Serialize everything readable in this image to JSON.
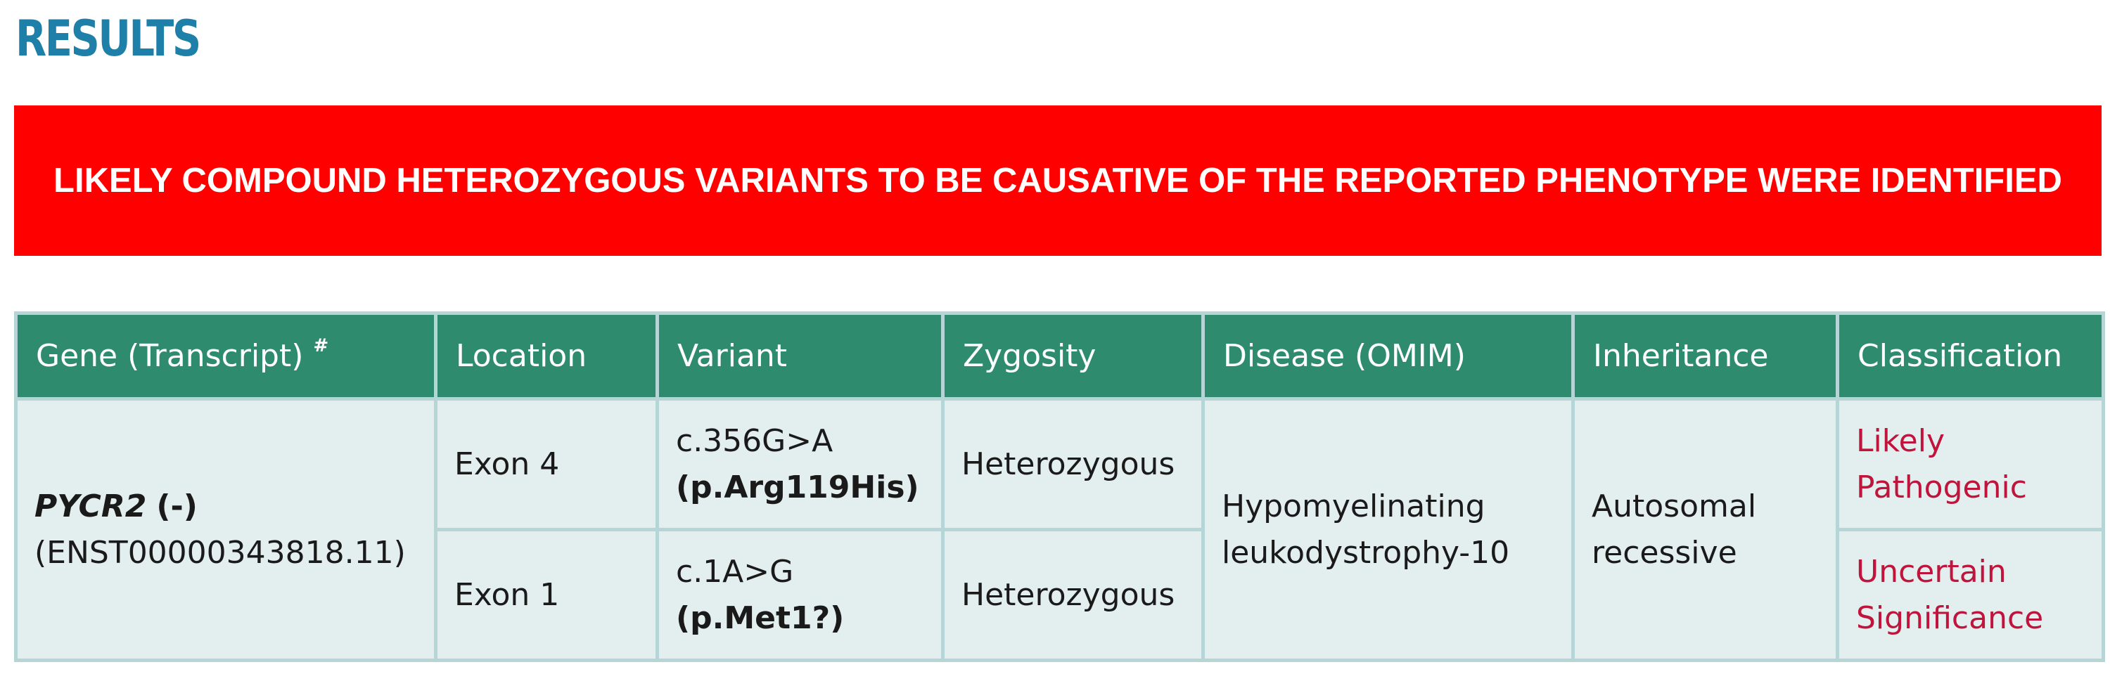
{
  "section": {
    "title": "RESULTS"
  },
  "banner": {
    "text": "LIKELY COMPOUND HETEROZYGOUS VARIANTS TO BE CAUSATIVE OF THE REPORTED PHENOTYPE WERE IDENTIFIED",
    "background_color": "#ff0000",
    "text_color": "#ffffff"
  },
  "table": {
    "header_color": "#2e8b6e",
    "row_color": "#e3eeee",
    "classification_color": "#c0143c",
    "headers": {
      "gene": "Gene (Transcript)",
      "gene_marker": "#",
      "location": "Location",
      "variant": "Variant",
      "zygosity": "Zygosity",
      "disease": "Disease (OMIM)",
      "inheritance": "Inheritance",
      "classification": "Classification"
    },
    "gene": {
      "name": "PYCR2",
      "strand": "(-)",
      "transcript": "(ENST00000343818.11)"
    },
    "disease": "Hypomyelinating leukodystrophy-10",
    "inheritance": "Autosomal recessive",
    "rows": [
      {
        "location": "Exon 4",
        "cdna": "c.356G>A",
        "protein": "(p.Arg119His)",
        "zygosity": "Heterozygous",
        "classification": "Likely Pathogenic"
      },
      {
        "location": "Exon 1",
        "cdna": "c.1A>G",
        "protein": "(p.Met1?)",
        "zygosity": "Heterozygous",
        "classification": "Uncertain Significance"
      }
    ]
  }
}
